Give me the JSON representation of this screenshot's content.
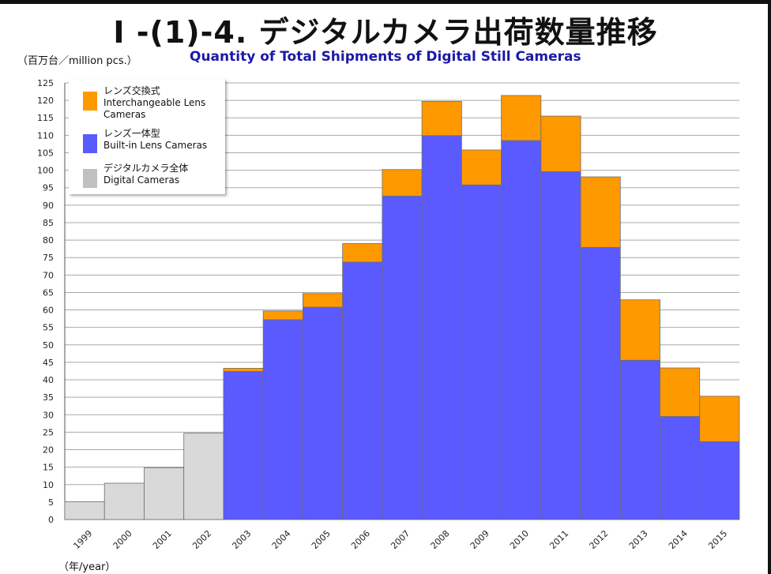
{
  "header": {
    "title": "I -(1)-4. デジタルカメラ出荷数量推移",
    "subtitle": "Quantity of Total Shipments of Digital Still Cameras",
    "unit_label": "（百万台／million pcs.）",
    "x_unit_label": "（年/year）"
  },
  "legend": {
    "items": [
      {
        "label_jp": "レンズ交換式",
        "label_en": "Interchangeable Lens Cameras",
        "color": "#ff9900"
      },
      {
        "label_jp": "レンズ一体型",
        "label_en": "Built-in Lens Cameras",
        "color": "#5a5aff"
      },
      {
        "label_jp": "デジタルカメラ全体",
        "label_en": "Digital Cameras",
        "color": "#c0c0c0"
      }
    ]
  },
  "chart_data": {
    "type": "bar",
    "stacked": true,
    "categories": [
      "1999",
      "2000",
      "2001",
      "2002",
      "2003",
      "2004",
      "2005",
      "2006",
      "2007",
      "2008",
      "2009",
      "2010",
      "2011",
      "2012",
      "2013",
      "2014",
      "2015"
    ],
    "series": [
      {
        "name": "Digital Cameras",
        "color": "#d9d9d9",
        "values": [
          5.1,
          10.4,
          14.8,
          24.7,
          null,
          null,
          null,
          null,
          null,
          null,
          null,
          null,
          null,
          null,
          null,
          null,
          null
        ]
      },
      {
        "name": "Built-in Lens Cameras",
        "color": "#5a5aff",
        "values": [
          null,
          null,
          null,
          null,
          42.4,
          57.2,
          60.8,
          73.7,
          92.6,
          109.9,
          95.8,
          108.5,
          99.6,
          77.9,
          45.6,
          29.5,
          22.3
        ]
      },
      {
        "name": "Interchangeable Lens Cameras",
        "color": "#ff9900",
        "values": [
          null,
          null,
          null,
          null,
          0.9,
          2.5,
          3.9,
          5.3,
          7.6,
          9.8,
          10.0,
          12.9,
          15.9,
          20.2,
          17.3,
          13.9,
          13.0
        ]
      }
    ],
    "ylim": [
      0,
      125
    ],
    "y_ticks": [
      0,
      5,
      10,
      15,
      20,
      25,
      30,
      35,
      40,
      45,
      50,
      55,
      60,
      65,
      70,
      75,
      80,
      85,
      90,
      95,
      100,
      105,
      110,
      115,
      120,
      125
    ],
    "grid": true,
    "legend_position": "top-left"
  }
}
